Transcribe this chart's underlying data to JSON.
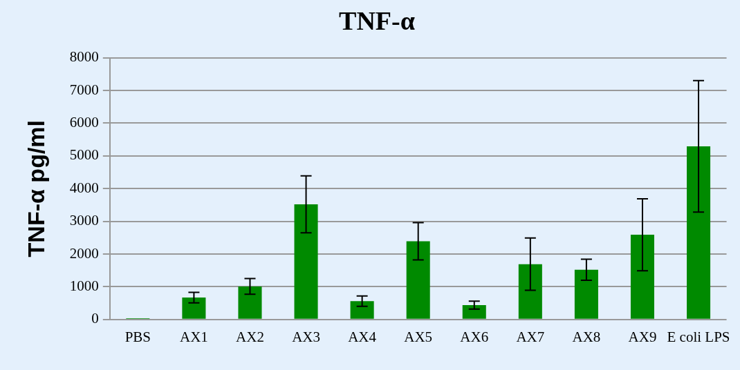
{
  "chart_data": {
    "type": "bar",
    "title": "TNF-α",
    "ylabel": "TNF-α pg/ml",
    "categories": [
      "PBS",
      "AX1",
      "AX2",
      "AX3",
      "AX4",
      "AX5",
      "AX6",
      "AX7",
      "AX8",
      "AX9",
      "E coli LPS"
    ],
    "values": [
      40,
      670,
      1010,
      3520,
      560,
      2390,
      440,
      1690,
      1520,
      2590,
      5290
    ],
    "errors": [
      null,
      160,
      240,
      870,
      160,
      570,
      120,
      800,
      320,
      1100,
      2010
    ],
    "color": "#008a00",
    "ylim": [
      0,
      8000
    ],
    "yticks": [
      0,
      1000,
      2000,
      3000,
      4000,
      5000,
      6000,
      7000,
      8000
    ],
    "grid": "y",
    "legend": false
  }
}
